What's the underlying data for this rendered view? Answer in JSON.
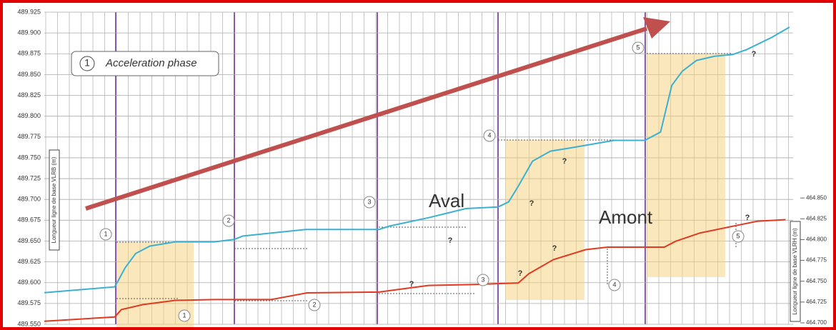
{
  "chart_data": {
    "type": "line",
    "y_label": "Longueur ligne de base VLRB (m)",
    "y2_label": "Longueur ligne de base VLRH (m)",
    "legend_number": "1",
    "legend_text": "Acceleration phase",
    "step_labels": [
      "1",
      "2",
      "3",
      "4",
      "5"
    ],
    "question_mark": "?",
    "xlim": [
      0,
      100
    ],
    "ylim": [
      489.55,
      489.925
    ],
    "yticks": [
      {
        "value": 489.55,
        "label": "489.550"
      },
      489.575,
      {
        "value": 489.6,
        "label": "489.600"
      },
      489.625,
      {
        "value": 489.65,
        "label": "489.650"
      },
      489.675,
      {
        "value": 489.7,
        "label": "489.700"
      },
      489.725,
      {
        "value": 489.75,
        "label": "489.750"
      },
      489.775,
      {
        "value": 489.8,
        "label": "489.800"
      },
      489.825,
      {
        "value": 489.85,
        "label": "489.850"
      },
      489.875,
      {
        "value": 489.9,
        "label": "489.900"
      },
      489.925
    ],
    "y2lim": [
      464.7,
      465.075
    ],
    "y2ticks": [
      {
        "value": 464.7,
        "label": "464.700"
      },
      464.725,
      {
        "value": 464.75,
        "label": "464.750"
      },
      464.775,
      {
        "value": 464.8,
        "label": "464.800"
      },
      464.825,
      {
        "value": 464.85,
        "label": "464.850"
      }
    ],
    "grid": true,
    "series": [
      {
        "name": "Aval",
        "color": "#3bb0d0",
        "x": [
          0,
          9.4,
          9.9,
          10.8,
          12.2,
          14.1,
          17.5,
          22.7,
          25.4,
          26.5,
          34.9,
          44.7,
          46.1,
          51.3,
          56.3,
          60.6,
          62.0,
          63.3,
          65.2,
          67.6,
          70.4,
          76.1,
          80.2,
          82.3,
          83.8,
          85.2,
          87.1,
          89.5,
          91.9,
          93.8,
          97.2,
          99.5
        ],
        "values": [
          489.588,
          489.595,
          489.603,
          489.618,
          489.635,
          489.644,
          489.649,
          489.649,
          489.652,
          489.656,
          489.664,
          489.664,
          489.668,
          489.678,
          489.689,
          489.691,
          489.697,
          489.716,
          489.746,
          489.758,
          489.762,
          489.771,
          489.771,
          489.781,
          489.837,
          489.854,
          489.867,
          489.872,
          489.874,
          489.88,
          489.895,
          489.907
        ]
      },
      {
        "name": "Amont",
        "color": "#e03a20",
        "axis": "y2",
        "x": [
          0,
          9.4,
          10.3,
          13.2,
          17.5,
          22.7,
          30.3,
          35.1,
          44.7,
          51.3,
          57.1,
          63.3,
          64.7,
          68.0,
          72.3,
          75.2,
          82.8,
          84.3,
          87.6,
          91.9,
          95.2,
          99.0
        ],
        "values": [
          464.702,
          464.707,
          464.716,
          464.722,
          464.727,
          464.728,
          464.728,
          464.736,
          464.737,
          464.745,
          464.746,
          464.748,
          464.759,
          464.776,
          464.788,
          464.791,
          464.791,
          464.798,
          464.808,
          464.816,
          464.822,
          464.824
        ]
      }
    ]
  }
}
